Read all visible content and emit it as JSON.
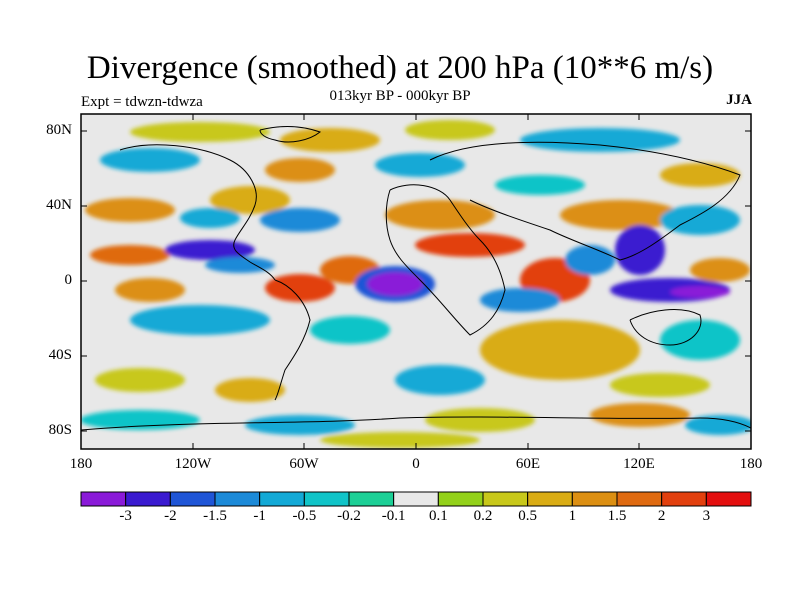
{
  "title": "Divergence (smoothed) at 200 hPa (10**6 m/s)",
  "subtitle": "013kyr BP - 000kyr BP",
  "experiment": "Expt = tdwzn-tdwza",
  "season": "JJA",
  "lat_labels": [
    "80N",
    "40N",
    "0",
    "40S",
    "80S"
  ],
  "lon_labels": [
    "180",
    "120W",
    "60W",
    "0",
    "60E",
    "120E",
    "180"
  ],
  "colorbar": {
    "colors": [
      "#8a1ad8",
      "#3a1ad0",
      "#1f55d6",
      "#1c8ad8",
      "#13a9d6",
      "#10c4c8",
      "#1ccf96",
      "#e8e8e8",
      "#93d11a",
      "#c8c81a",
      "#d9ac14",
      "#dc8f12",
      "#df6a10",
      "#e2400e",
      "#e30e0e"
    ],
    "labels": [
      "-3",
      "-2",
      "-1.5",
      "-1",
      "-0.5",
      "-0.2",
      "-0.1",
      "0.1",
      "0.2",
      "0.5",
      "1",
      "1.5",
      "2",
      "3"
    ]
  }
}
